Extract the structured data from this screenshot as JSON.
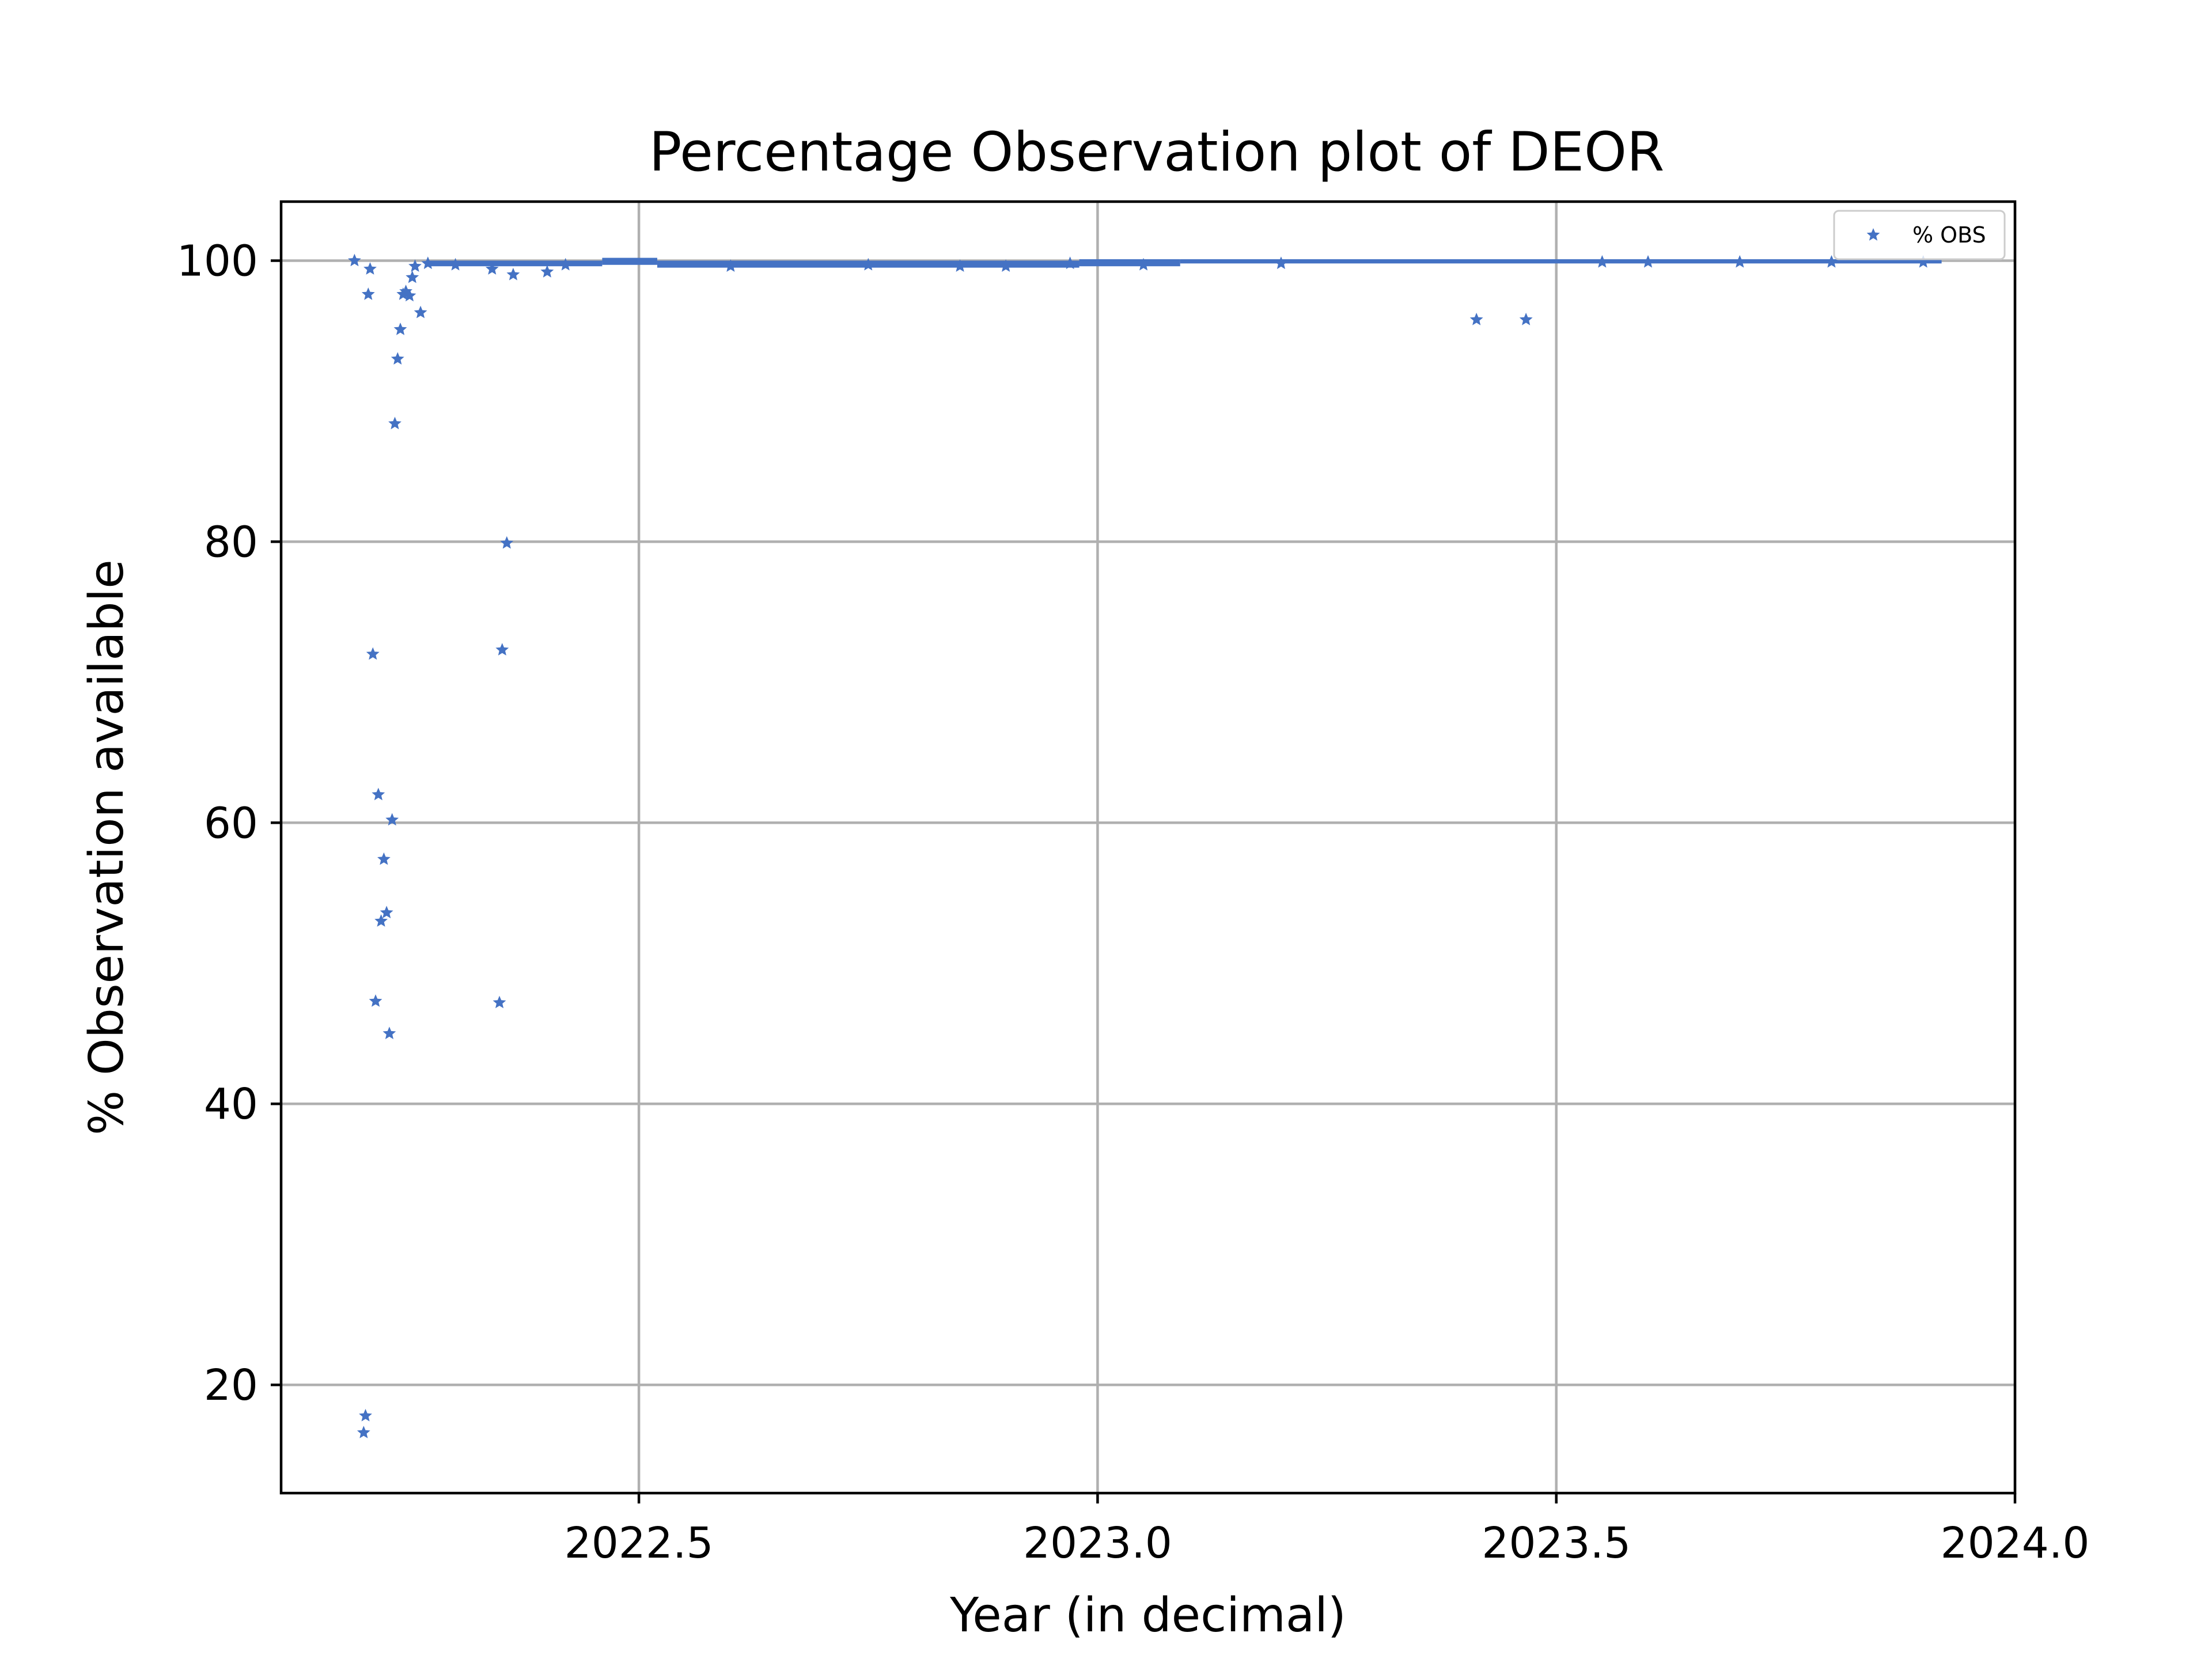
{
  "colors": {
    "marker": "#4472c4",
    "grid": "#b0b0b0",
    "axes": "#000000",
    "background": "#ffffff"
  },
  "chart_data": {
    "type": "scatter",
    "title": "Percentage Observation plot of DEOR",
    "xlabel": "Year (in decimal)",
    "ylabel": "% Observation available",
    "xlim": [
      2022.11,
      2024.0
    ],
    "ylim": [
      12.3,
      104.2
    ],
    "xticks": [
      2022.5,
      2023.0,
      2023.5,
      2024.0
    ],
    "xtick_labels": [
      "2022.5",
      "2023.0",
      "2023.5",
      "2024.0"
    ],
    "yticks": [
      20,
      40,
      60,
      80,
      100
    ],
    "ytick_labels": [
      "20",
      "40",
      "60",
      "80",
      "100"
    ],
    "grid": true,
    "legend_position": "top-right",
    "marker": "star",
    "series": [
      {
        "name": "% OBS",
        "color": "#4472c4",
        "band_segments": [
          {
            "x_start": 2022.27,
            "x_end": 2022.46,
            "y_low": 99.6,
            "y_high": 100.0
          },
          {
            "x_start": 2022.46,
            "x_end": 2022.52,
            "y_low": 99.7,
            "y_high": 100.2
          },
          {
            "x_start": 2022.52,
            "x_end": 2022.98,
            "y_low": 99.5,
            "y_high": 100.0
          },
          {
            "x_start": 2022.98,
            "x_end": 2023.09,
            "y_low": 99.6,
            "y_high": 100.1
          },
          {
            "x_start": 2023.09,
            "x_end": 2023.92,
            "y_low": 99.8,
            "y_high": 100.1
          }
        ],
        "points": [
          [
            2022.19,
            100.0
          ],
          [
            2022.2,
            16.6
          ],
          [
            2022.202,
            17.8
          ],
          [
            2022.205,
            97.6
          ],
          [
            2022.207,
            99.4
          ],
          [
            2022.21,
            72.0
          ],
          [
            2022.213,
            47.3
          ],
          [
            2022.216,
            62.0
          ],
          [
            2022.219,
            53.0
          ],
          [
            2022.222,
            57.4
          ],
          [
            2022.225,
            53.6
          ],
          [
            2022.228,
            45.0
          ],
          [
            2022.231,
            60.2
          ],
          [
            2022.234,
            88.4
          ],
          [
            2022.237,
            93.0
          ],
          [
            2022.24,
            95.1
          ],
          [
            2022.243,
            97.6
          ],
          [
            2022.246,
            97.8
          ],
          [
            2022.25,
            97.5
          ],
          [
            2022.253,
            98.8
          ],
          [
            2022.256,
            99.6
          ],
          [
            2022.262,
            96.3
          ],
          [
            2022.27,
            99.8
          ],
          [
            2022.3,
            99.7
          ],
          [
            2022.34,
            99.4
          ],
          [
            2022.348,
            47.2
          ],
          [
            2022.351,
            72.3
          ],
          [
            2022.356,
            79.9
          ],
          [
            2022.363,
            99.0
          ],
          [
            2022.4,
            99.2
          ],
          [
            2022.42,
            99.7
          ],
          [
            2022.6,
            99.6
          ],
          [
            2022.75,
            99.7
          ],
          [
            2022.85,
            99.6
          ],
          [
            2022.9,
            99.6
          ],
          [
            2022.97,
            99.8
          ],
          [
            2023.05,
            99.7
          ],
          [
            2023.2,
            99.8
          ],
          [
            2023.413,
            95.8
          ],
          [
            2023.467,
            95.8
          ],
          [
            2023.55,
            99.9
          ],
          [
            2023.6,
            99.9
          ],
          [
            2023.7,
            99.9
          ],
          [
            2023.8,
            99.9
          ],
          [
            2023.9,
            99.9
          ]
        ]
      }
    ]
  }
}
